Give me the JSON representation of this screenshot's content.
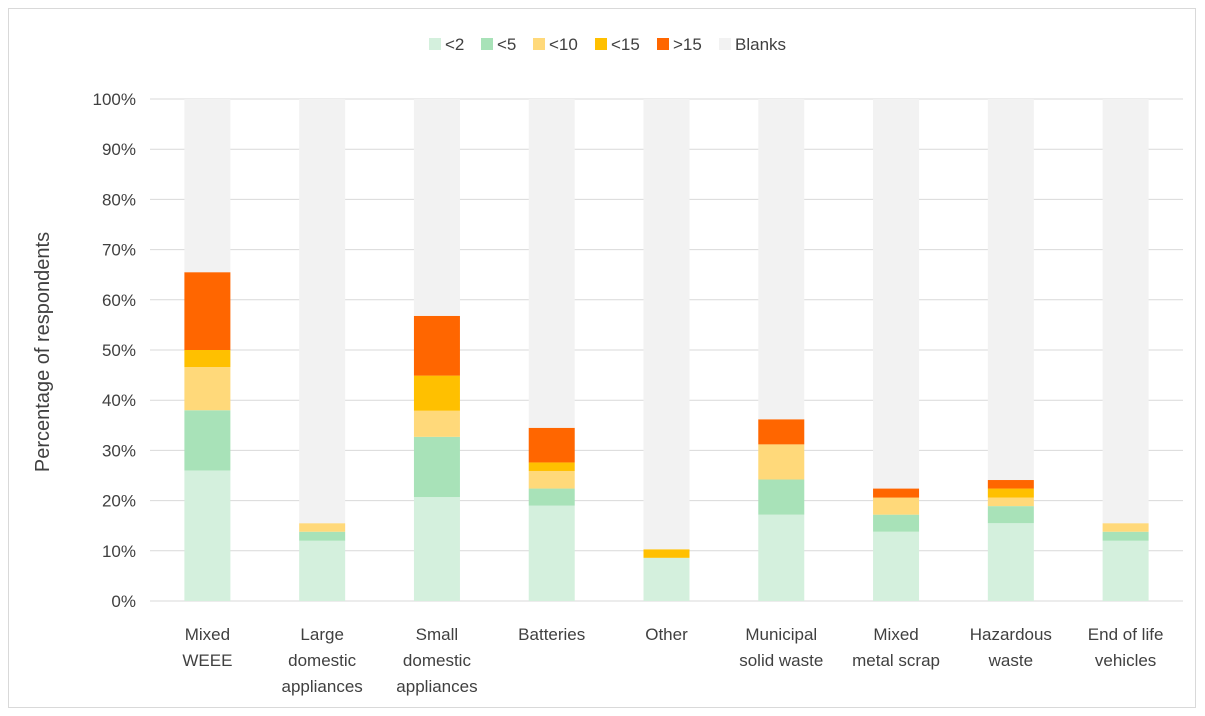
{
  "chart_data": {
    "type": "bar",
    "stacked": true,
    "percent_stacked": true,
    "title": "",
    "xlabel": "",
    "ylabel": "Percentage of respondents",
    "ylim": [
      0,
      100
    ],
    "ytick_step": 10,
    "ytick_suffix": "%",
    "grid": true,
    "legend_position": "top",
    "categories": [
      [
        "Mixed",
        "WEEE"
      ],
      [
        "Large",
        "domestic",
        "appliances"
      ],
      [
        "Small",
        "domestic",
        "appliances"
      ],
      [
        "Batteries"
      ],
      [
        "Other"
      ],
      [
        "Municipal",
        "solid waste"
      ],
      [
        "Mixed",
        "metal scrap"
      ],
      [
        "Hazardous",
        "waste"
      ],
      [
        "End of life",
        "vehicles"
      ]
    ],
    "series": [
      {
        "name": "<2",
        "color": "#d4f0dd",
        "values": [
          26.0,
          12.0,
          20.7,
          19.0,
          8.6,
          17.2,
          13.8,
          15.5,
          12.0
        ]
      },
      {
        "name": "<5",
        "color": "#a8e2b8",
        "values": [
          12.0,
          1.8,
          12.0,
          3.4,
          0,
          7.0,
          3.4,
          3.4,
          1.8
        ]
      },
      {
        "name": "<10",
        "color": "#ffd97a",
        "values": [
          8.6,
          1.7,
          5.2,
          3.5,
          0,
          7.0,
          3.4,
          1.7,
          1.7
        ]
      },
      {
        "name": "<15",
        "color": "#ffc000",
        "values": [
          3.4,
          0,
          7.0,
          1.7,
          1.7,
          0,
          0,
          1.8,
          0
        ]
      },
      {
        "name": ">15",
        "color": "#ff6600",
        "values": [
          15.5,
          0,
          11.9,
          6.9,
          0,
          5.0,
          1.8,
          1.7,
          0
        ]
      },
      {
        "name": "Blanks",
        "color": "#f2f2f2",
        "values": [
          34.5,
          84.5,
          43.2,
          65.5,
          89.7,
          63.8,
          77.6,
          75.9,
          84.5
        ]
      }
    ]
  }
}
